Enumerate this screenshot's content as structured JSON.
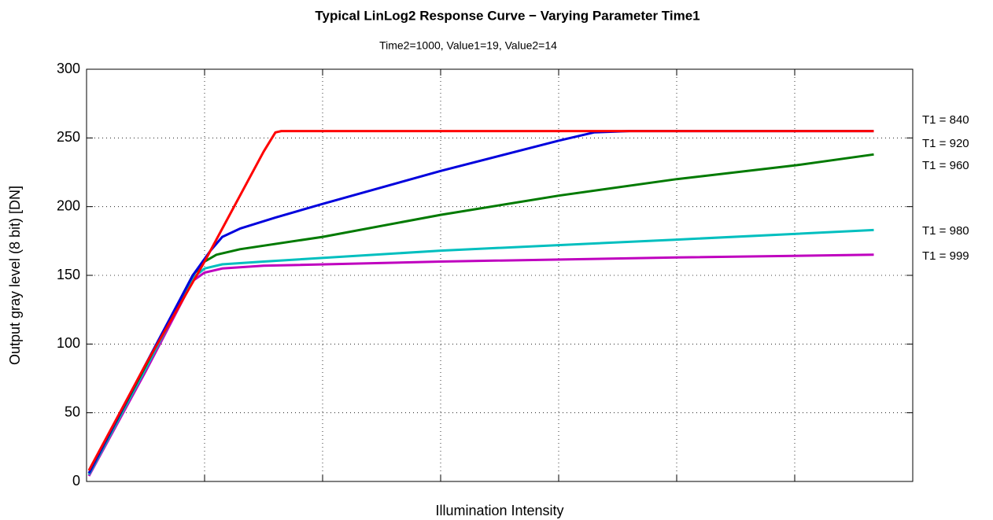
{
  "chart_data": {
    "type": "line",
    "title": "Typical LinLog2 Response Curve − Varying Parameter Time1",
    "subtitle": "Time2=1000, Value1=19, Value2=14",
    "x_label": "Illumination Intensity",
    "y_label": "Output gray level (8 bit) [DN]",
    "xlim": [
      0,
      7
    ],
    "xticks": [
      1,
      2,
      3,
      4,
      5,
      6
    ],
    "xtick_labels_shown": false,
    "ylim": [
      0,
      300
    ],
    "yticks": [
      0,
      50,
      100,
      150,
      200,
      250,
      300
    ],
    "grid": true,
    "series": [
      {
        "name": "T1 = 840",
        "color": "#ff0000",
        "x": [
          0.02,
          0.5,
          1.0,
          1.5,
          1.6,
          1.65,
          6.67
        ],
        "values": [
          8,
          85,
          160,
          240,
          254,
          255,
          255
        ]
      },
      {
        "name": "T1 = 920",
        "color": "#0000dd",
        "x": [
          0.02,
          0.5,
          0.9,
          1.05,
          1.15,
          1.3,
          1.6,
          2,
          3,
          4,
          4.3,
          4.6,
          6.67
        ],
        "values": [
          6,
          85,
          150,
          168,
          178,
          184,
          192,
          202,
          226,
          248,
          254,
          255,
          255
        ]
      },
      {
        "name": "T1 = 960",
        "color": "#007a00",
        "x": [
          0.02,
          0.5,
          0.9,
          1.0,
          1.1,
          1.3,
          2,
          3,
          4,
          5,
          6,
          6.67
        ],
        "values": [
          6,
          84,
          150,
          160,
          165,
          169,
          178,
          194,
          208,
          220,
          230,
          238
        ]
      },
      {
        "name": "T1 = 980",
        "color": "#00bfbf",
        "x": [
          0.02,
          0.5,
          0.9,
          1.0,
          1.15,
          1.5,
          3,
          5,
          6.67
        ],
        "values": [
          5,
          82,
          148,
          155,
          158,
          160,
          168,
          176,
          183
        ]
      },
      {
        "name": "T1 = 999",
        "color": "#bf00bf",
        "x": [
          0.02,
          0.5,
          0.9,
          1.0,
          1.15,
          1.5,
          3,
          5,
          6.67
        ],
        "values": [
          4,
          80,
          146,
          152,
          155,
          157,
          160,
          163,
          165
        ]
      }
    ]
  }
}
